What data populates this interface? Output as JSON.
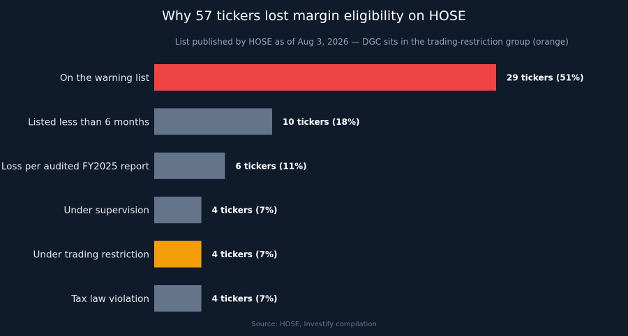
{
  "chart_data": {
    "type": "bar",
    "orientation": "horizontal",
    "title": "Why 57 tickers lost margin eligibility on HOSE",
    "subtitle": "List published by HOSE as of Aug 3, 2026 — DGC sits in the trading-restriction group (orange)",
    "source": "Source: HOSE, Investify compilation",
    "categories": [
      "On the warning list",
      "Listed less than 6 months",
      "Loss per audited FY2025 report",
      "Under supervision",
      "Under trading restriction",
      "Tax law violation"
    ],
    "values": [
      29,
      10,
      6,
      4,
      4,
      4
    ],
    "data_labels": [
      "29 tickers (51%)",
      "10 tickers (18%)",
      "6 tickers (11%)",
      "4 tickers (7%)",
      "4 tickers (7%)",
      "4 tickers (7%)"
    ],
    "colors": [
      "#ef4444",
      "#64748b",
      "#64748b",
      "#64748b",
      "#f59e0b",
      "#64748b"
    ],
    "xlim": [
      0,
      29
    ],
    "grid": false,
    "legend": "none",
    "xlabel": "",
    "ylabel": ""
  },
  "style": {
    "background": "#0f1a2b",
    "title_color": "#ffffff",
    "subtitle_color": "#94a3b8",
    "label_color": "#e5e7eb",
    "value_label_color": "#ffffff",
    "source_color": "#64748b"
  }
}
